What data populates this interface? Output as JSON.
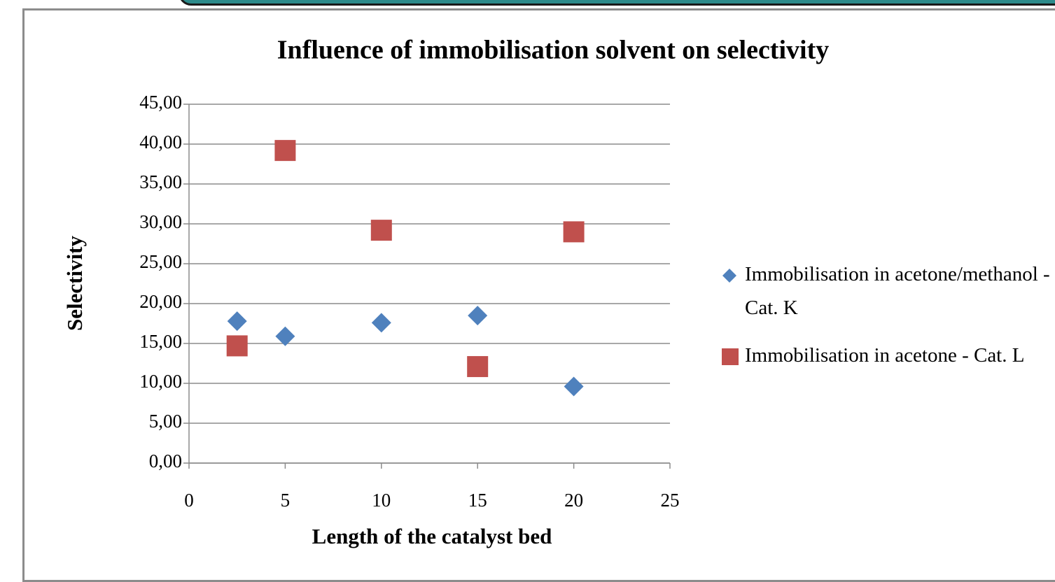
{
  "chart_data": {
    "type": "scatter",
    "title": "Influence of immobilisation  solvent  on selectivity",
    "xlabel": "Length of the catalyst bed",
    "ylabel": "Selectivity",
    "series": [
      {
        "name": "Immobilisation in acetone/methanol - Cat. K",
        "color": "#4f81bd",
        "marker": "diamond",
        "x": [
          2.5,
          5,
          10,
          15,
          20
        ],
        "values": [
          17.8,
          15.9,
          17.6,
          18.5,
          9.6
        ]
      },
      {
        "name": "Immobilisation in acetone - Cat. L",
        "color": "#c0504d",
        "marker": "square",
        "x": [
          2.5,
          5,
          10,
          15,
          20
        ],
        "values": [
          14.7,
          39.2,
          29.2,
          12.1,
          29.0
        ]
      }
    ],
    "xlim": [
      0,
      25
    ],
    "xticks": [
      0,
      5,
      10,
      15,
      20,
      25
    ],
    "ylim": [
      0,
      45
    ],
    "yticks": [
      {
        "value": 0,
        "label": "0,00"
      },
      {
        "value": 5,
        "label": "5,00"
      },
      {
        "value": 10,
        "label": "10,00"
      },
      {
        "value": 15,
        "label": "15,00"
      },
      {
        "value": 20,
        "label": "20,00"
      },
      {
        "value": 25,
        "label": "25,00"
      },
      {
        "value": 30,
        "label": "30,00"
      },
      {
        "value": 35,
        "label": "35,00"
      },
      {
        "value": 40,
        "label": "40,00"
      },
      {
        "value": 45,
        "label": "45,00"
      }
    ],
    "grid": true,
    "legend": "right"
  }
}
